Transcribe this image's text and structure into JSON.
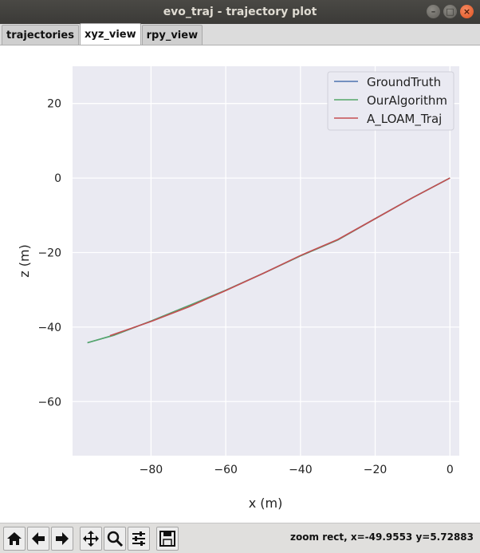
{
  "window": {
    "title": "evo_traj - trajectory plot"
  },
  "tabs": [
    {
      "label": "trajectories",
      "active": false
    },
    {
      "label": "xyz_view",
      "active": true
    },
    {
      "label": "rpy_view",
      "active": false
    }
  ],
  "toolbar": {
    "icons": [
      "home-icon",
      "back-icon",
      "forward-icon",
      "pan-icon",
      "zoom-icon",
      "configure-icon",
      "save-icon"
    ]
  },
  "status": {
    "text": "zoom rect, x=-49.9553     y=5.72883"
  },
  "colors": {
    "groundtruth": "#4c72b0",
    "ouralgorithm": "#55a868",
    "aloam": "#c44e52",
    "axes_bg": "#eaeaf2"
  },
  "chart_data": {
    "type": "line",
    "title": "",
    "xlabel": "x (m)",
    "ylabel": "z (m)",
    "xlim": [
      -101,
      2.5
    ],
    "ylim": [
      -74.5,
      30
    ],
    "xticks": [
      -80,
      -60,
      -40,
      -20,
      0
    ],
    "yticks": [
      20,
      0,
      -20,
      -40,
      -60
    ],
    "xtick_labels": [
      "−80",
      "−60",
      "−40",
      "−20",
      "0"
    ],
    "ytick_labels": [
      "20",
      "0",
      "−20",
      "−40",
      "−60"
    ],
    "grid": true,
    "legend_position": "top-right",
    "series": [
      {
        "name": "GroundTruth",
        "color": "#4c72b0",
        "x": [
          0,
          -10,
          -20,
          -30,
          -40,
          -50,
          -60,
          -70,
          -80,
          -90,
          -97
        ],
        "y": [
          0,
          -5.3,
          -10.9,
          -16.6,
          -20.9,
          -25.6,
          -30.1,
          -34.3,
          -38.4,
          -42.2,
          -44.2
        ]
      },
      {
        "name": "OurAlgorithm",
        "color": "#55a868",
        "x": [
          0,
          -10,
          -20,
          -30,
          -40,
          -50,
          -60,
          -70,
          -80,
          -90,
          -97
        ],
        "y": [
          0,
          -5.3,
          -10.9,
          -16.6,
          -20.9,
          -25.6,
          -30.1,
          -34.3,
          -38.4,
          -42.2,
          -44.2
        ]
      },
      {
        "name": "A_LOAM_Traj",
        "color": "#c44e52",
        "x": [
          0,
          -10,
          -20,
          -30,
          -40,
          -50,
          -60,
          -70,
          -80,
          -91
        ],
        "y": [
          0,
          -5.3,
          -10.9,
          -16.5,
          -20.8,
          -25.6,
          -30.2,
          -34.6,
          -38.5,
          -42.3
        ]
      }
    ]
  }
}
